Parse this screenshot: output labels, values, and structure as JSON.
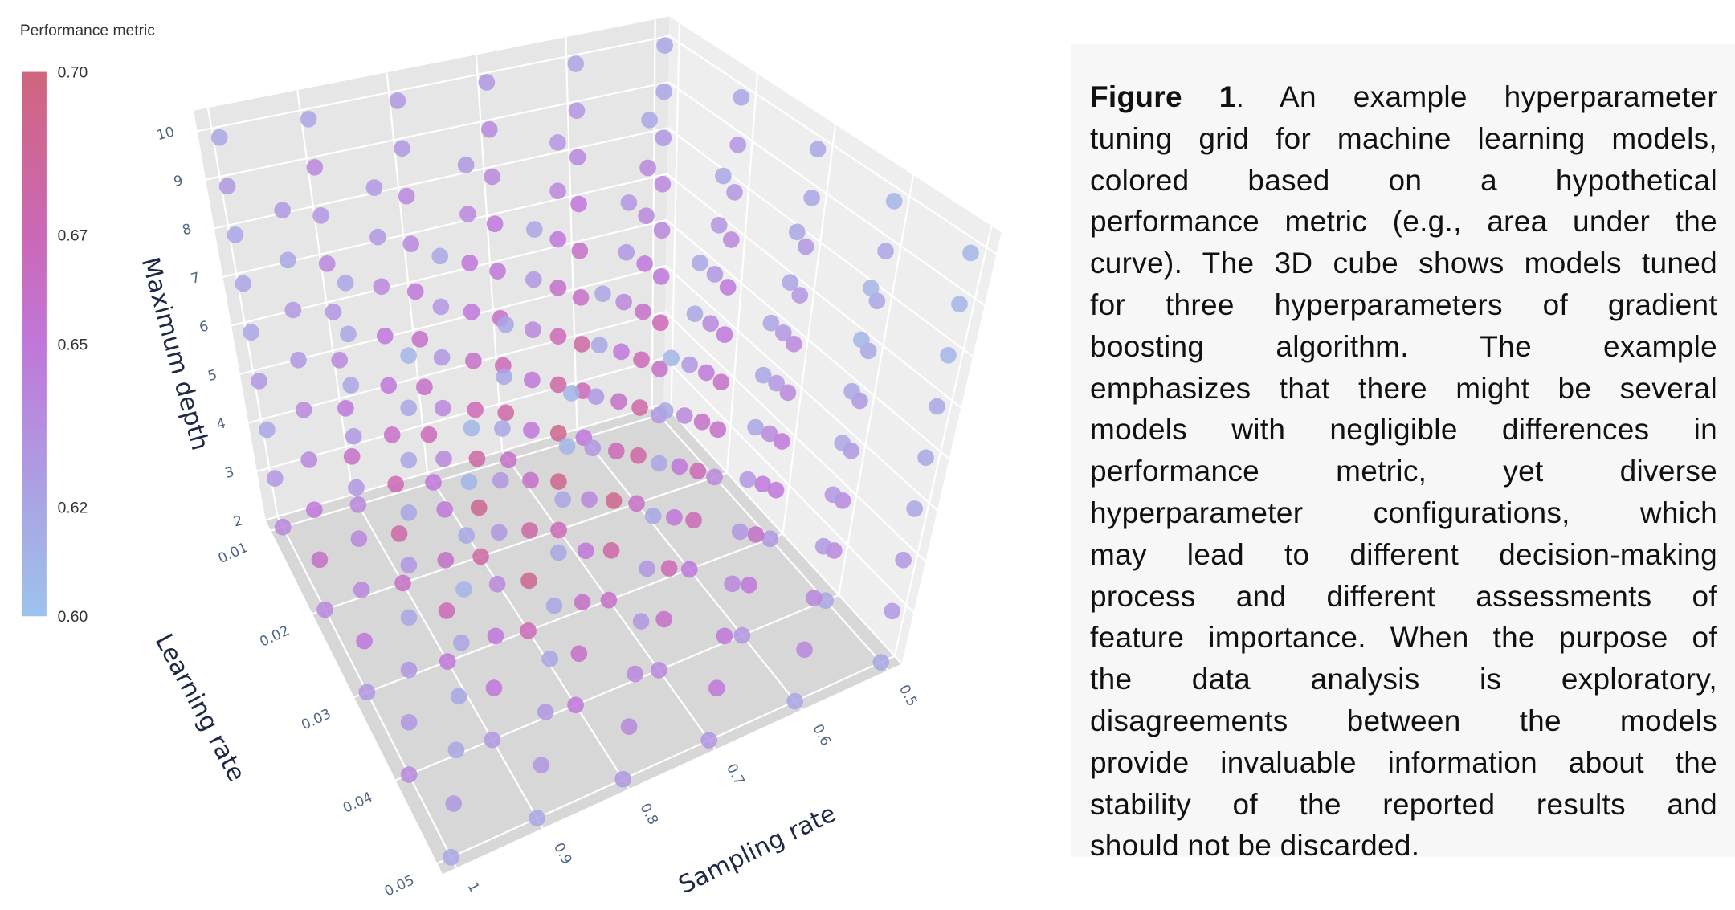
{
  "chart_data": {
    "type": "scatter3d",
    "axes": {
      "x": {
        "label": "Learning rate",
        "ticks": [
          0.01,
          0.02,
          0.03,
          0.04,
          0.05
        ],
        "tick_labels": [
          "0.01",
          "0.02",
          "0.03",
          "0.04",
          "0.05"
        ],
        "range": [
          0.01,
          0.05
        ]
      },
      "y": {
        "label": "Sampling rate",
        "ticks": [
          1,
          0.9,
          0.8,
          0.7,
          0.6,
          0.5
        ],
        "tick_labels": [
          "1",
          "0.9",
          "0.8",
          "0.7",
          "0.6",
          "0.5"
        ],
        "range": [
          1,
          0.5
        ]
      },
      "z": {
        "label": "Maximum depth",
        "ticks": [
          2,
          3,
          4,
          5,
          6,
          7,
          8,
          9,
          10
        ],
        "tick_labels": [
          "2",
          "3",
          "4",
          "5",
          "6",
          "7",
          "8",
          "9",
          "10"
        ],
        "range": [
          2,
          10
        ]
      }
    },
    "colorbar": {
      "title": "Performance metric",
      "ticks": [
        0.6,
        0.62,
        0.65,
        0.67,
        0.7
      ],
      "tick_labels": [
        "0.60",
        "0.62",
        "0.65",
        "0.67",
        "0.70"
      ],
      "range": [
        0.6,
        0.7
      ],
      "colorscale": [
        [
          0.6,
          "#9cc3ec"
        ],
        [
          0.62,
          "#a9a6e4"
        ],
        [
          0.65,
          "#c077d9"
        ],
        [
          0.67,
          "#cb68b6"
        ],
        [
          0.7,
          "#d0657e"
        ]
      ]
    },
    "grid": true,
    "values": [
      [
        [
          0.64,
          0.63,
          0.62,
          0.63,
          0.62,
          0.62,
          0.62,
          0.63,
          0.62
        ],
        [
          0.64,
          0.66,
          0.65,
          0.64,
          0.63,
          0.64,
          0.63,
          0.64,
          0.62
        ],
        [
          0.65,
          0.67,
          0.66,
          0.66,
          0.65,
          0.64,
          0.64,
          0.63,
          0.63
        ],
        [
          0.66,
          0.68,
          0.67,
          0.66,
          0.65,
          0.65,
          0.64,
          0.64,
          0.63
        ],
        [
          0.65,
          0.67,
          0.68,
          0.66,
          0.66,
          0.65,
          0.64,
          0.63,
          0.62
        ],
        [
          0.63,
          0.66,
          0.67,
          0.65,
          0.64,
          0.64,
          0.63,
          0.62,
          0.62
        ]
      ],
      [
        [
          0.64,
          0.66,
          0.65,
          0.64,
          0.64,
          0.63,
          0.63,
          0.62,
          0.63
        ],
        [
          0.66,
          0.68,
          0.67,
          0.66,
          0.65,
          0.65,
          0.64,
          0.63,
          0.63
        ],
        [
          0.68,
          0.69,
          0.68,
          0.67,
          0.66,
          0.65,
          0.65,
          0.64,
          0.63
        ],
        [
          0.67,
          0.69,
          0.69,
          0.68,
          0.67,
          0.66,
          0.65,
          0.64,
          0.63
        ],
        [
          0.66,
          0.68,
          0.68,
          0.67,
          0.66,
          0.65,
          0.64,
          0.64,
          0.62
        ],
        [
          0.64,
          0.66,
          0.66,
          0.65,
          0.65,
          0.64,
          0.63,
          0.63,
          0.62
        ]
      ],
      [
        [
          0.63,
          0.65,
          0.64,
          0.64,
          0.63,
          0.63,
          0.62,
          0.62,
          0.62
        ],
        [
          0.65,
          0.67,
          0.66,
          0.65,
          0.64,
          0.64,
          0.63,
          0.63,
          0.62
        ],
        [
          0.67,
          0.69,
          0.68,
          0.66,
          0.65,
          0.65,
          0.64,
          0.63,
          0.62
        ],
        [
          0.66,
          0.68,
          0.69,
          0.67,
          0.66,
          0.65,
          0.64,
          0.63,
          0.63
        ],
        [
          0.65,
          0.67,
          0.67,
          0.66,
          0.65,
          0.64,
          0.63,
          0.63,
          0.62
        ],
        [
          0.63,
          0.65,
          0.65,
          0.64,
          0.64,
          0.63,
          0.63,
          0.62,
          0.62
        ]
      ],
      [
        [
          0.64,
          0.63,
          0.63,
          0.62,
          0.63,
          0.62,
          0.62,
          0.62,
          0.61
        ],
        [
          0.63,
          0.65,
          0.65,
          0.64,
          0.63,
          0.63,
          0.62,
          0.62,
          0.62
        ],
        [
          0.65,
          0.66,
          0.66,
          0.65,
          0.64,
          0.63,
          0.63,
          0.62,
          0.62
        ],
        [
          0.64,
          0.66,
          0.67,
          0.65,
          0.65,
          0.64,
          0.63,
          0.62,
          0.62
        ],
        [
          0.63,
          0.65,
          0.66,
          0.65,
          0.64,
          0.63,
          0.63,
          0.62,
          0.62
        ],
        [
          0.62,
          0.64,
          0.64,
          0.63,
          0.63,
          0.62,
          0.62,
          0.62,
          0.61
        ]
      ],
      [
        [
          0.62,
          0.63,
          0.62,
          0.62,
          0.62,
          0.61,
          0.62,
          0.61,
          0.61
        ],
        [
          0.62,
          0.63,
          0.63,
          0.62,
          0.62,
          0.62,
          0.62,
          0.61,
          0.61
        ],
        [
          0.63,
          0.64,
          0.64,
          0.63,
          0.63,
          0.62,
          0.62,
          0.62,
          0.61
        ],
        [
          0.63,
          0.65,
          0.65,
          0.64,
          0.63,
          0.63,
          0.62,
          0.62,
          0.62
        ],
        [
          0.62,
          0.64,
          0.64,
          0.63,
          0.63,
          0.62,
          0.62,
          0.61,
          0.61
        ],
        [
          0.62,
          0.63,
          0.63,
          0.62,
          0.62,
          0.62,
          0.61,
          0.61,
          0.61
        ]
      ]
    ]
  },
  "caption": {
    "label": "Figure 1",
    "lines": [
      ". An example hyperparameter",
      "tuning grid for machine learning models,",
      "colored based on a hypothetical",
      "performance metric (e.g., area under the",
      "curve). The 3D cube shows models tuned",
      "for three hyperparameters of gradient",
      "boosting algorithm. The example",
      "emphasizes that there might be several",
      "models with negligible differences in",
      "performance metric, yet diverse",
      "hyperparameter configurations, which",
      "may lead to different decision-making",
      "process and different assessments of",
      "feature importance. When the purpose of",
      "the data analysis is exploratory,",
      "disagreements between the models",
      "provide invaluable information about the",
      "stability of the reported results and",
      "should not be discarded."
    ]
  }
}
